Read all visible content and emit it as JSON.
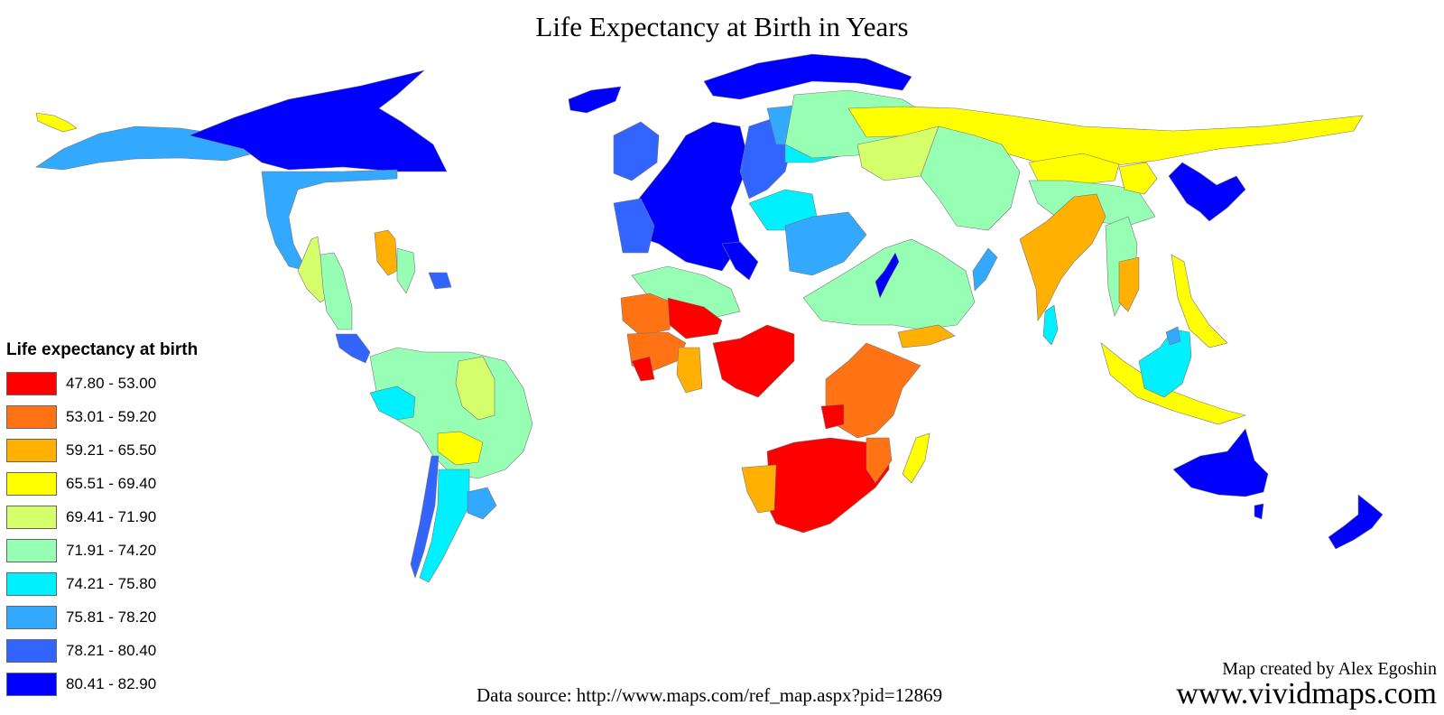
{
  "title": "Life Expectancy at Birth in Years",
  "legend": {
    "title": "Life expectancy at birth",
    "items": [
      {
        "label": "47.80 - 53.00",
        "color": "#ff0000"
      },
      {
        "label": "53.01 - 59.20",
        "color": "#ff7314"
      },
      {
        "label": "59.21 - 65.50",
        "color": "#ffb000"
      },
      {
        "label": "65.51 - 69.40",
        "color": "#ffff00"
      },
      {
        "label": "69.41 - 71.90",
        "color": "#d4ff6a"
      },
      {
        "label": "71.91 - 74.20",
        "color": "#96ffb4"
      },
      {
        "label": "74.21 - 75.80",
        "color": "#00f0ff"
      },
      {
        "label": "75.81 - 78.20",
        "color": "#32a8ff"
      },
      {
        "label": "78.21 - 80.40",
        "color": "#3264ff"
      },
      {
        "label": "80.41 - 82.90",
        "color": "#0000ff"
      }
    ]
  },
  "source": "Data source: http://www.maps.com/ref_map.aspx?pid=12869",
  "credit": "Map created by Alex Egoshin",
  "site": "www.vividmaps.com"
}
